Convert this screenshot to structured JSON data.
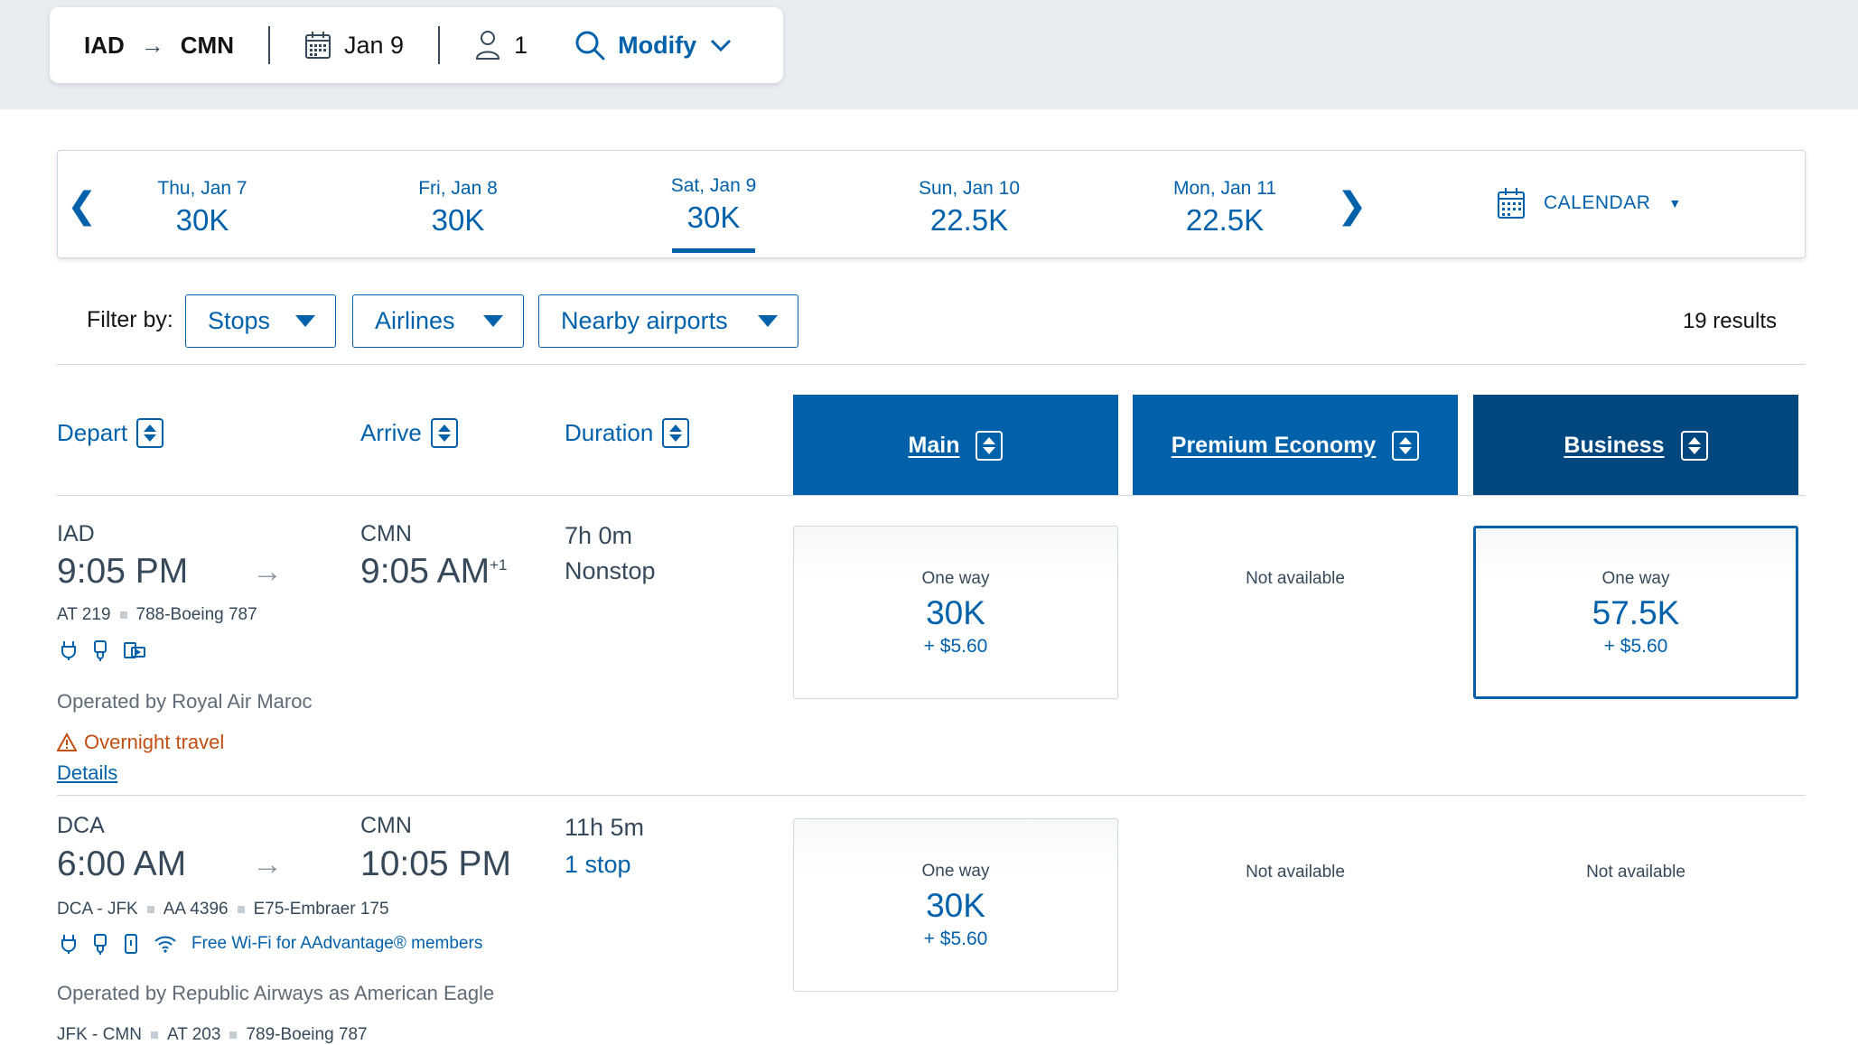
{
  "search": {
    "origin": "IAD",
    "destination": "CMN",
    "date": "Jan 9",
    "passengers": "1",
    "modify_label": "Modify"
  },
  "date_strip": {
    "days": [
      {
        "label": "Thu, Jan 7",
        "price": "30K"
      },
      {
        "label": "Fri, Jan 8",
        "price": "30K"
      },
      {
        "label": "Sat, Jan 9",
        "price": "30K"
      },
      {
        "label": "Sun, Jan 10",
        "price": "22.5K"
      },
      {
        "label": "Mon, Jan 11",
        "price": "22.5K"
      }
    ],
    "selected": "Sat, Jan 9",
    "calendar_label": "CALENDAR"
  },
  "filters": {
    "label": "Filter by:",
    "stops": "Stops",
    "airlines": "Airlines",
    "nearby": "Nearby airports",
    "results": "19 results"
  },
  "columns": {
    "depart": "Depart",
    "arrive": "Arrive",
    "duration": "Duration",
    "main": "Main",
    "premium": "Premium Economy",
    "business": "Business"
  },
  "flights": [
    {
      "dep_airport": "IAD",
      "dep_time": "9:05 PM",
      "arr_airport": "CMN",
      "arr_time": "9:05 AM",
      "arr_day_offset": "+1",
      "duration": "7h 0m",
      "stops": "Nonstop",
      "flight_no": "AT 219",
      "aircraft": "788-Boeing 787",
      "operated_by": "Operated by Royal Air Maroc",
      "warning": "Overnight travel",
      "details": "Details",
      "main": {
        "label": "One way",
        "miles": "30K",
        "tax": "+ $5.60"
      },
      "premium": "Not available",
      "business": {
        "label": "One way",
        "miles": "57.5K",
        "tax": "+ $5.60"
      }
    },
    {
      "dep_airport": "DCA",
      "dep_time": "6:00 AM",
      "arr_airport": "CMN",
      "arr_time": "10:05 PM",
      "duration": "11h 5m",
      "stops": "1 stop",
      "segment1_route": "DCA - JFK",
      "segment1_flight": "AA 4396",
      "segment1_aircraft": "E75-Embraer 175",
      "wifi": "Free Wi-Fi for AAdvantage® members",
      "operated_by": "Operated by Republic Airways as American Eagle",
      "segment2_route": "JFK - CMN",
      "segment2_flight": "AT 203",
      "segment2_aircraft": "789-Boeing 787",
      "main": {
        "label": "One way",
        "miles": "30K",
        "tax": "+ $5.60"
      },
      "premium": "Not available",
      "business": "Not available"
    }
  ],
  "colors": {
    "primary": "#0061ab",
    "business_header": "#00467f",
    "warning": "#c34e11"
  },
  "icons": [
    "arrow-right-icon",
    "calendar-icon",
    "person-icon",
    "search-icon",
    "chevron-down-icon",
    "chevron-left-icon",
    "chevron-right-icon",
    "sort-icon",
    "power-outlet-icon",
    "usb-icon",
    "entertainment-icon",
    "device-icon",
    "wifi-icon",
    "warning-icon"
  ]
}
